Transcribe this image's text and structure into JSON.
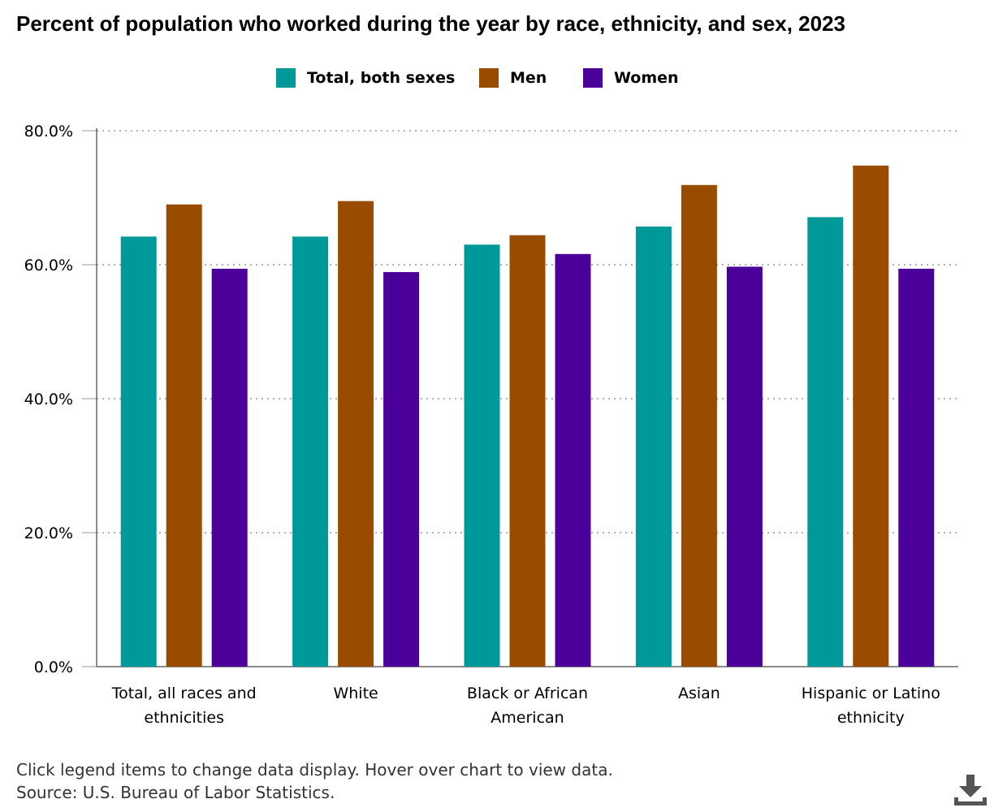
{
  "chart_data": {
    "type": "bar",
    "title": "Percent of population who worked during the year by race, ethnicity, and sex, 2023",
    "categories": [
      [
        "Total, all races and",
        "ethnicities"
      ],
      [
        "White"
      ],
      [
        "Black or African",
        "American"
      ],
      [
        "Asian"
      ],
      [
        "Hispanic or Latino",
        "ethnicity"
      ]
    ],
    "series": [
      {
        "name": "Total, both sexes",
        "color": "#009999",
        "values": [
          64.2,
          64.2,
          63.0,
          65.7,
          67.1
        ]
      },
      {
        "name": "Men",
        "color": "#994c00",
        "values": [
          69.0,
          69.5,
          64.4,
          71.9,
          74.8
        ]
      },
      {
        "name": "Women",
        "color": "#4b0099",
        "values": [
          59.4,
          58.9,
          61.6,
          59.7,
          59.4
        ]
      }
    ],
    "yticks": [
      "0.0%",
      "20.0%",
      "40.0%",
      "60.0%",
      "80.0%"
    ],
    "ylim": [
      0,
      80
    ],
    "xlabel": "",
    "ylabel": "",
    "grid": true,
    "legend_position": "top"
  },
  "footer": {
    "instruction": "Click legend items to change data display. Hover over chart to view data.",
    "source": "Source: U.S. Bureau of Labor Statistics."
  },
  "icons": {
    "download": "download-icon"
  }
}
